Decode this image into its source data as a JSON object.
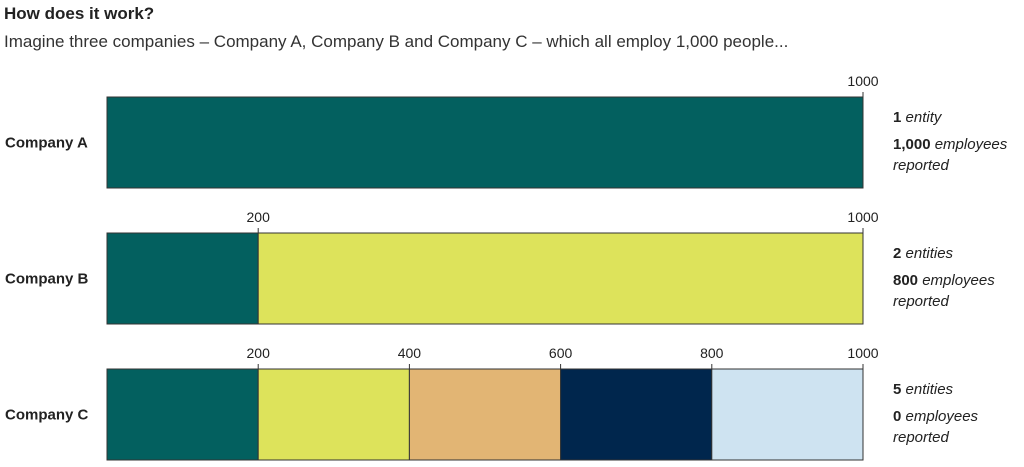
{
  "title": "How does it work?",
  "subtitle": "Imagine three companies – Company A, Company B and Company C – which all employ 1,000 people...",
  "colors": {
    "teal": "#03605f",
    "lime": "#dde35b",
    "tan": "#e2b574",
    "navy": "#00264d",
    "lightblue": "#cee3f1",
    "border": "#333333"
  },
  "chart_data": {
    "type": "bar",
    "orientation": "horizontal-stacked",
    "xlim": [
      0,
      1000
    ],
    "companies": [
      {
        "name": "Company A",
        "ticks": [
          1000
        ],
        "segments": [
          {
            "from": 0,
            "to": 1000,
            "color": "teal"
          }
        ],
        "entities_value": "1",
        "entities_word": "entity",
        "employees_value": "1,000",
        "employees_word": "employees",
        "reported_word": "reported"
      },
      {
        "name": "Company B",
        "ticks": [
          200,
          1000
        ],
        "segments": [
          {
            "from": 0,
            "to": 200,
            "color": "teal"
          },
          {
            "from": 200,
            "to": 1000,
            "color": "lime"
          }
        ],
        "entities_value": "2",
        "entities_word": "entities",
        "employees_value": "800",
        "employees_word": "employees",
        "reported_word": "reported"
      },
      {
        "name": "Company C",
        "ticks": [
          200,
          400,
          600,
          800,
          1000
        ],
        "segments": [
          {
            "from": 0,
            "to": 200,
            "color": "teal"
          },
          {
            "from": 200,
            "to": 400,
            "color": "lime"
          },
          {
            "from": 400,
            "to": 600,
            "color": "tan"
          },
          {
            "from": 600,
            "to": 800,
            "color": "navy"
          },
          {
            "from": 800,
            "to": 1000,
            "color": "lightblue"
          }
        ],
        "entities_value": "5",
        "entities_word": "entities",
        "employees_value": "0",
        "employees_word": "employees",
        "reported_word": "reported"
      }
    ]
  }
}
